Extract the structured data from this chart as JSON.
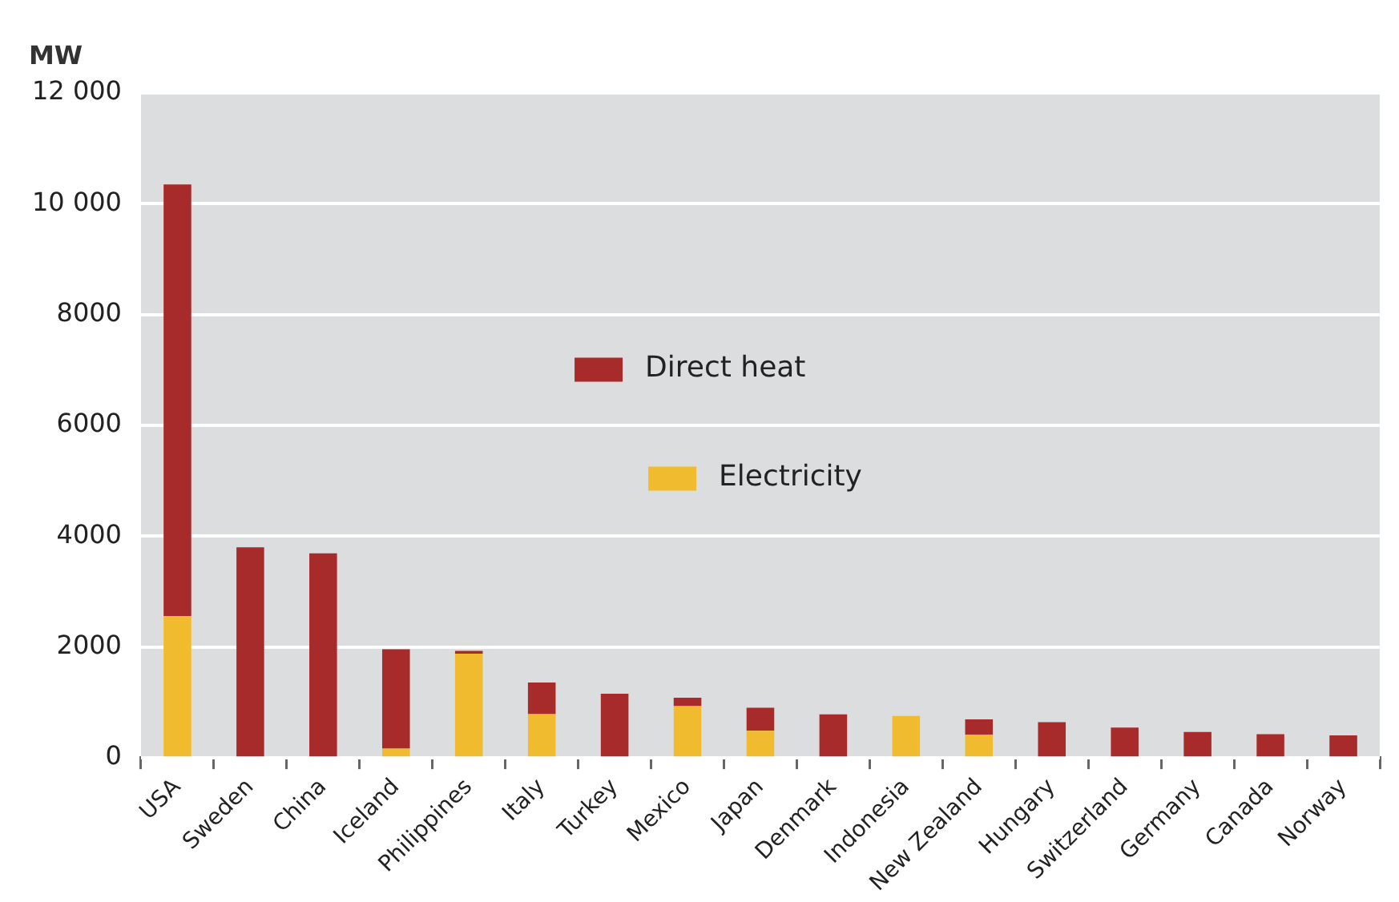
{
  "chart_data": {
    "type": "bar",
    "stacked": true,
    "ylabel": "MW",
    "categories": [
      "USA",
      "Sweden",
      "China",
      "Iceland",
      "Philippines",
      "Italy",
      "Turkey",
      "Mexico",
      "Japan",
      "Denmark",
      "Indonesia",
      "New Zealand",
      "Hungary",
      "Switzerland",
      "Germany",
      "Canada",
      "Norway"
    ],
    "series": [
      {
        "name": "Electricity",
        "color": "#f0bb2e",
        "values": [
          2560,
          0,
          0,
          170,
          1880,
          790,
          0,
          935,
          490,
          0,
          756,
          417,
          0,
          0,
          0,
          0,
          0
        ]
      },
      {
        "name": "Direct heat",
        "color": "#a72b2a",
        "values": [
          7790,
          3800,
          3690,
          1790,
          50,
          570,
          1160,
          150,
          415,
          786,
          0,
          280,
          646,
          548,
          468,
          429,
          408
        ]
      }
    ],
    "ylim": [
      0,
      12000
    ],
    "yticks": [
      0,
      2000,
      4000,
      6000,
      8000,
      {
        "value": 10000,
        "label": "10 000"
      },
      {
        "value": 12000,
        "label": "12 000"
      }
    ],
    "grid": "y",
    "legend": "center"
  }
}
